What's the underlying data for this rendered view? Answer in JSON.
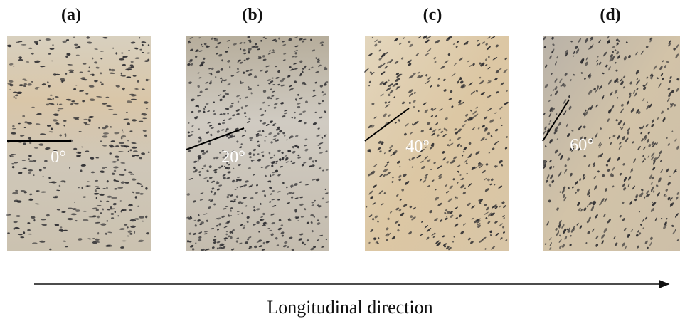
{
  "panels": [
    {
      "label": "(a)",
      "angle": "0°"
    },
    {
      "label": "(b)",
      "angle": "20°"
    },
    {
      "label": "(c)",
      "angle": "40°"
    },
    {
      "label": "(d)",
      "angle": "60°"
    }
  ],
  "caption": "Longitudinal direction"
}
